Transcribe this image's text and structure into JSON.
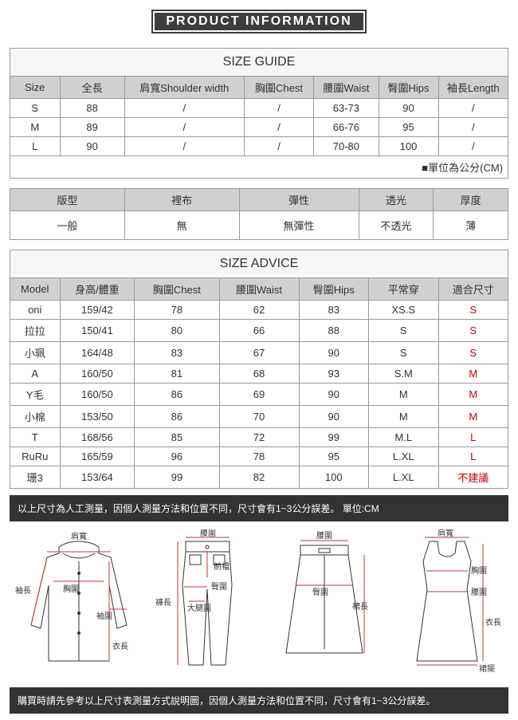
{
  "title": "PRODUCT INFORMATION",
  "sizeGuide": {
    "heading": "SIZE GUIDE",
    "headers": [
      "Size",
      "全長",
      "肩寬Shoulder width",
      "胸圍Chest",
      "腰圍Waist",
      "臀圍Hips",
      "袖長Length"
    ],
    "rows": [
      [
        "S",
        "88",
        "/",
        "/",
        "63-73",
        "90",
        "/"
      ],
      [
        "M",
        "89",
        "/",
        "/",
        "66-76",
        "95",
        "/"
      ],
      [
        "L",
        "90",
        "/",
        "/",
        "70-80",
        "100",
        "/"
      ]
    ],
    "unitNote": "■單位為公分(CM)"
  },
  "attributes": {
    "headers": [
      "版型",
      "裡布",
      "彈性",
      "透光",
      "厚度"
    ],
    "values": [
      "一般",
      "無",
      "無彈性",
      "不透光",
      "薄"
    ]
  },
  "sizeAdvice": {
    "heading": "SIZE ADVICE",
    "headers": [
      "Model",
      "身高/體重",
      "胸圍Chest",
      "腰圍Waist",
      "臀圍Hips",
      "平常穿",
      "適合尺寸"
    ],
    "rows": [
      {
        "cells": [
          "oni",
          "159/42",
          "78",
          "62",
          "83",
          "XS.S"
        ],
        "fit": "S"
      },
      {
        "cells": [
          "拉拉",
          "150/41",
          "80",
          "66",
          "88",
          "S"
        ],
        "fit": "S"
      },
      {
        "cells": [
          "小珮",
          "164/48",
          "83",
          "67",
          "90",
          "S"
        ],
        "fit": "S"
      },
      {
        "cells": [
          "A",
          "160/50",
          "81",
          "68",
          "93",
          "S.M"
        ],
        "fit": "M"
      },
      {
        "cells": [
          "Y毛",
          "160/50",
          "86",
          "69",
          "90",
          "M"
        ],
        "fit": "M"
      },
      {
        "cells": [
          "小棉",
          "153/50",
          "86",
          "70",
          "90",
          "M"
        ],
        "fit": "M"
      },
      {
        "cells": [
          "T",
          "168/56",
          "85",
          "72",
          "99",
          "M.L"
        ],
        "fit": "L"
      },
      {
        "cells": [
          "RuRu",
          "165/59",
          "96",
          "78",
          "95",
          "L.XL"
        ],
        "fit": "L"
      },
      {
        "cells": [
          "珊3",
          "153/64",
          "99",
          "82",
          "100",
          "L.XL"
        ],
        "fit": "不建議"
      }
    ]
  },
  "note1": "以上尺寸為人工測量，因個人測量方法和位置不同，尺寸會有1~3公分誤差。 單位:CM",
  "note2": "購買時請先參考以上尺寸表測量方式說明圖，因個人測量方法和位置不同，尺寸會有1~3公分誤差。",
  "diagramLabels": {
    "shoulder": "肩寬",
    "chest": "胸圍",
    "sleeve": "袖長",
    "cuff": "袖圍",
    "length": "衣長",
    "waist": "腰圍",
    "hips": "臀圍",
    "thigh": "大腿圍",
    "rise": "前襠",
    "pantLength": "褲長",
    "skirtLength": "裙長",
    "hem": "裙擺"
  }
}
